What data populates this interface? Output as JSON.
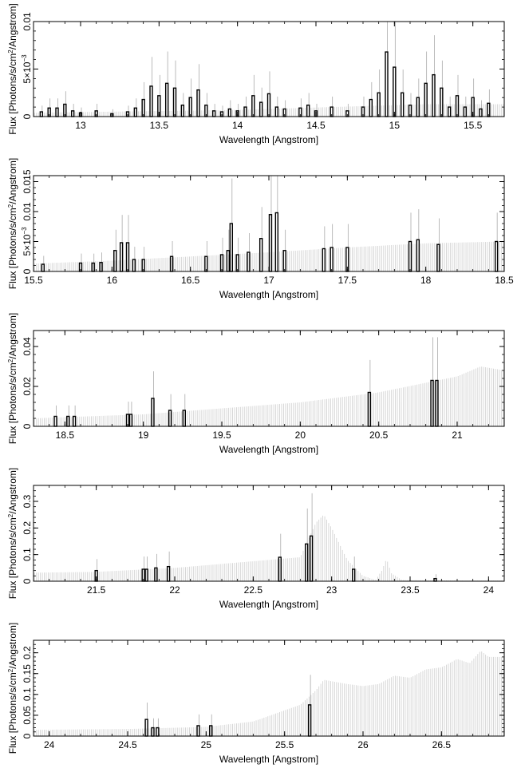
{
  "figure": {
    "description_axes": "five stacked spectral panels",
    "ylabel_prefix": "Flux [Photons/s/cm",
    "ylabel_suffix": "/Angstrom]",
    "ylabel_sup": "2",
    "xlabel": "Wavelength [Angstrom]"
  },
  "chart_data": [
    {
      "type": "line",
      "xlabel": "Wavelength [Angstrom]",
      "ylabel": "Flux [Photons/s/cm²/Angstrom]",
      "xlim": [
        12.7,
        15.7
      ],
      "ylim": [
        0,
        0.01
      ],
      "xticks": [
        {
          "v": 13,
          "label": "13"
        },
        {
          "v": 13.5,
          "label": "13.5"
        },
        {
          "v": 14,
          "label": "14"
        },
        {
          "v": 14.5,
          "label": "14.5"
        },
        {
          "v": 15,
          "label": "15"
        },
        {
          "v": 15.5,
          "label": "15.5"
        }
      ],
      "yticks": [
        {
          "v": 0,
          "label": "0"
        },
        {
          "v": 0.005,
          "label": "5×10",
          "exp": "−3"
        },
        {
          "v": 0.01,
          "label": "0.01"
        }
      ],
      "model_ceiling": [
        [
          12.7,
          0.0004
        ],
        [
          14.0,
          0.0007
        ],
        [
          15.2,
          0.0013
        ],
        [
          15.7,
          0.0013
        ]
      ],
      "model_color": "#d3d3d3",
      "series": [
        {
          "data_color": "#000000",
          "points": [
            [
              12.75,
              0.0005
            ],
            [
              12.8,
              0.0009
            ],
            [
              12.85,
              0.0009
            ],
            [
              12.9,
              0.0013
            ],
            [
              12.95,
              0.0006
            ],
            [
              13.0,
              0.0004
            ],
            [
              13.1,
              0.0006
            ],
            [
              13.2,
              0.0003
            ],
            [
              13.3,
              0.0005
            ],
            [
              13.35,
              0.0009
            ],
            [
              13.4,
              0.0018
            ],
            [
              13.45,
              0.0032
            ],
            [
              13.5,
              0.0022
            ],
            [
              13.55,
              0.0035
            ],
            [
              13.6,
              0.003
            ],
            [
              13.65,
              0.0012
            ],
            [
              13.7,
              0.002
            ],
            [
              13.75,
              0.0028
            ],
            [
              13.8,
              0.0012
            ],
            [
              13.85,
              0.0006
            ],
            [
              13.9,
              0.0005
            ],
            [
              13.95,
              0.0008
            ],
            [
              14.0,
              0.0006
            ],
            [
              14.05,
              0.001
            ],
            [
              14.1,
              0.0022
            ],
            [
              14.15,
              0.0015
            ],
            [
              14.2,
              0.0024
            ],
            [
              14.25,
              0.001
            ],
            [
              14.3,
              0.0008
            ],
            [
              14.4,
              0.0009
            ],
            [
              14.45,
              0.0012
            ],
            [
              14.5,
              0.0006
            ],
            [
              14.6,
              0.001
            ],
            [
              14.7,
              0.0006
            ],
            [
              14.8,
              0.001
            ],
            [
              14.85,
              0.0018
            ],
            [
              14.9,
              0.0025
            ],
            [
              14.95,
              0.0068
            ],
            [
              15.0,
              0.0052
            ],
            [
              15.05,
              0.0025
            ],
            [
              15.1,
              0.0012
            ],
            [
              15.15,
              0.002
            ],
            [
              15.2,
              0.0035
            ],
            [
              15.25,
              0.0044
            ],
            [
              15.3,
              0.003
            ],
            [
              15.35,
              0.001
            ],
            [
              15.4,
              0.0022
            ],
            [
              15.45,
              0.001
            ],
            [
              15.5,
              0.002
            ],
            [
              15.55,
              0.0008
            ],
            [
              15.6,
              0.0014
            ]
          ]
        }
      ]
    },
    {
      "type": "line",
      "xlabel": "Wavelength [Angstrom]",
      "ylabel": "Flux [Photons/s/cm²/Angstrom]",
      "xlim": [
        15.5,
        18.5
      ],
      "ylim": [
        0,
        0.016
      ],
      "xticks": [
        {
          "v": 15.5,
          "label": "15.5"
        },
        {
          "v": 16,
          "label": "16"
        },
        {
          "v": 16.5,
          "label": "16.5"
        },
        {
          "v": 17,
          "label": "17"
        },
        {
          "v": 17.5,
          "label": "17.5"
        },
        {
          "v": 18,
          "label": "18"
        },
        {
          "v": 18.5,
          "label": "18.5"
        }
      ],
      "yticks": [
        {
          "v": 0,
          "label": "0"
        },
        {
          "v": 0.005,
          "label": "5×10",
          "exp": "−3"
        },
        {
          "v": 0.01,
          "label": "0.01"
        },
        {
          "v": 0.015,
          "label": "0.015"
        }
      ],
      "model_ceiling": [
        [
          15.5,
          0.0013
        ],
        [
          16.0,
          0.0018
        ],
        [
          16.5,
          0.0025
        ],
        [
          17.0,
          0.0032
        ],
        [
          17.5,
          0.004
        ],
        [
          18.0,
          0.0047
        ],
        [
          18.5,
          0.005
        ]
      ],
      "model_color": "#d3d3d3",
      "series": [
        {
          "data_color": "#000000",
          "points": [
            [
              15.56,
              0.0012
            ],
            [
              15.8,
              0.0014
            ],
            [
              15.88,
              0.0014
            ],
            [
              15.93,
              0.0015
            ],
            [
              16.02,
              0.0035
            ],
            [
              16.06,
              0.0048
            ],
            [
              16.1,
              0.0048
            ],
            [
              16.14,
              0.002
            ],
            [
              16.2,
              0.002
            ],
            [
              16.38,
              0.0025
            ],
            [
              16.6,
              0.0025
            ],
            [
              16.7,
              0.0028
            ],
            [
              16.74,
              0.0035
            ],
            [
              16.76,
              0.008
            ],
            [
              16.8,
              0.0028
            ],
            [
              16.87,
              0.0032
            ],
            [
              16.95,
              0.0055
            ],
            [
              17.01,
              0.0095
            ],
            [
              17.05,
              0.0098
            ],
            [
              17.1,
              0.0035
            ],
            [
              17.35,
              0.0038
            ],
            [
              17.4,
              0.004
            ],
            [
              17.5,
              0.004
            ],
            [
              17.9,
              0.005
            ],
            [
              17.95,
              0.0053
            ],
            [
              18.08,
              0.0045
            ],
            [
              18.45,
              0.005
            ]
          ]
        }
      ]
    },
    {
      "type": "line",
      "xlabel": "Wavelength [Angstrom]",
      "ylabel": "Flux [Photons/s/cm²/Angstrom]",
      "xlim": [
        18.3,
        21.3
      ],
      "ylim": [
        0,
        0.048
      ],
      "xticks": [
        {
          "v": 18.5,
          "label": "18.5"
        },
        {
          "v": 19,
          "label": "19"
        },
        {
          "v": 19.5,
          "label": "19.5"
        },
        {
          "v": 20,
          "label": "20"
        },
        {
          "v": 20.5,
          "label": "20.5"
        },
        {
          "v": 21,
          "label": "21"
        }
      ],
      "yticks": [
        {
          "v": 0,
          "label": "0"
        },
        {
          "v": 0.02,
          "label": "0.02"
        },
        {
          "v": 0.04,
          "label": "0.04"
        }
      ],
      "model_ceiling": [
        [
          18.3,
          0.004
        ],
        [
          19.0,
          0.006
        ],
        [
          19.5,
          0.009
        ],
        [
          20.0,
          0.012
        ],
        [
          20.5,
          0.017
        ],
        [
          21.0,
          0.025
        ],
        [
          21.15,
          0.03
        ],
        [
          21.3,
          0.028
        ]
      ],
      "model_color": "#d3d3d3",
      "series": [
        {
          "data_color": "#000000",
          "points": [
            [
              18.44,
              0.005
            ],
            [
              18.52,
              0.005
            ],
            [
              18.56,
              0.005
            ],
            [
              18.9,
              0.006
            ],
            [
              18.92,
              0.006
            ],
            [
              19.06,
              0.014
            ],
            [
              19.17,
              0.008
            ],
            [
              19.26,
              0.008
            ],
            [
              20.44,
              0.017
            ],
            [
              20.84,
              0.023
            ],
            [
              20.87,
              0.023
            ]
          ]
        }
      ]
    },
    {
      "type": "line",
      "xlabel": "Wavelength [Angstrom]",
      "ylabel": "Flux [Photons/s/cm²/Angstrom]",
      "xlim": [
        21.1,
        24.1
      ],
      "ylim": [
        0,
        0.36
      ],
      "xticks": [
        {
          "v": 21.5,
          "label": "21.5"
        },
        {
          "v": 22,
          "label": "22"
        },
        {
          "v": 22.5,
          "label": "22.5"
        },
        {
          "v": 23,
          "label": "23"
        },
        {
          "v": 23.5,
          "label": "23.5"
        },
        {
          "v": 24,
          "label": "24"
        }
      ],
      "yticks": [
        {
          "v": 0,
          "label": "0"
        },
        {
          "v": 0.1,
          "label": "0.1"
        },
        {
          "v": 0.2,
          "label": "0.2"
        },
        {
          "v": 0.3,
          "label": "0.3"
        }
      ],
      "model_ceiling": [
        [
          21.1,
          0.032
        ],
        [
          21.5,
          0.035
        ],
        [
          22.0,
          0.05
        ],
        [
          22.5,
          0.075
        ],
        [
          22.8,
          0.09
        ],
        [
          22.9,
          0.22
        ],
        [
          22.95,
          0.25
        ],
        [
          23.0,
          0.2
        ],
        [
          23.1,
          0.08
        ],
        [
          23.2,
          0.02
        ],
        [
          23.28,
          0.005
        ],
        [
          23.32,
          0.04
        ],
        [
          23.35,
          0.085
        ],
        [
          23.38,
          0.03
        ],
        [
          23.45,
          0.004
        ],
        [
          24.1,
          0.002
        ]
      ],
      "model_color": "#d3d3d3",
      "series": [
        {
          "data_color": "#000000",
          "points": [
            [
              21.5,
              0.04
            ],
            [
              21.8,
              0.045
            ],
            [
              21.82,
              0.045
            ],
            [
              21.88,
              0.05
            ],
            [
              21.96,
              0.055
            ],
            [
              22.67,
              0.09
            ],
            [
              22.84,
              0.14
            ],
            [
              22.87,
              0.17
            ],
            [
              23.14,
              0.045
            ],
            [
              23.66,
              0.01
            ]
          ]
        }
      ]
    },
    {
      "type": "line",
      "xlabel": "Wavelength [Angstrom]",
      "ylabel": "Flux [Photons/s/cm²/Angstrom]",
      "xlim": [
        23.9,
        26.9
      ],
      "ylim": [
        0,
        0.23
      ],
      "xticks": [
        {
          "v": 24,
          "label": "24"
        },
        {
          "v": 24.5,
          "label": "24.5"
        },
        {
          "v": 25,
          "label": "25"
        },
        {
          "v": 25.5,
          "label": "25.5"
        },
        {
          "v": 26,
          "label": "26"
        },
        {
          "v": 26.5,
          "label": "26.5"
        }
      ],
      "yticks": [
        {
          "v": 0,
          "label": "0"
        },
        {
          "v": 0.05,
          "label": "0.05"
        },
        {
          "v": 0.1,
          "label": "0.1"
        },
        {
          "v": 0.15,
          "label": "0.15"
        },
        {
          "v": 0.2,
          "label": "0.2"
        }
      ],
      "model_ceiling": [
        [
          23.9,
          0.015
        ],
        [
          24.5,
          0.017
        ],
        [
          25.0,
          0.022
        ],
        [
          25.3,
          0.035
        ],
        [
          25.6,
          0.075
        ],
        [
          25.7,
          0.11
        ],
        [
          25.75,
          0.135
        ],
        [
          25.9,
          0.125
        ],
        [
          26.0,
          0.12
        ],
        [
          26.1,
          0.125
        ],
        [
          26.2,
          0.145
        ],
        [
          26.3,
          0.14
        ],
        [
          26.4,
          0.16
        ],
        [
          26.5,
          0.165
        ],
        [
          26.6,
          0.185
        ],
        [
          26.68,
          0.175
        ],
        [
          26.75,
          0.205
        ],
        [
          26.8,
          0.19
        ],
        [
          26.9,
          0.19
        ]
      ],
      "model_color": "#d3d3d3",
      "series": [
        {
          "data_color": "#000000",
          "points": [
            [
              24.62,
              0.04
            ],
            [
              24.66,
              0.02
            ],
            [
              24.69,
              0.02
            ],
            [
              24.95,
              0.025
            ],
            [
              25.03,
              0.025
            ],
            [
              25.66,
              0.075
            ]
          ]
        }
      ]
    }
  ]
}
